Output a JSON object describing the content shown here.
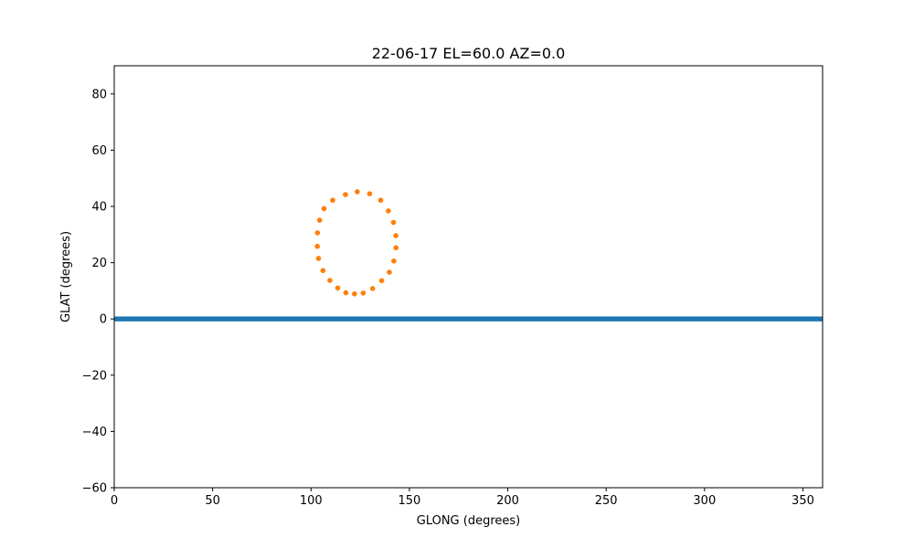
{
  "chart_data": {
    "type": "scatter",
    "title": "22-06-17 EL=60.0 AZ=0.0",
    "xlabel": "GLONG (degrees)",
    "ylabel": "GLAT (degrees)",
    "xlim": [
      0,
      360
    ],
    "ylim": [
      -60,
      90
    ],
    "xticks": [
      0,
      50,
      100,
      150,
      200,
      250,
      300,
      350
    ],
    "yticks": [
      -60,
      -40,
      -20,
      0,
      20,
      40,
      60,
      80
    ],
    "xtick_labels": [
      "0",
      "50",
      "100",
      "150",
      "200",
      "250",
      "300",
      "350"
    ],
    "ytick_labels": [
      "−60",
      "−40",
      "−20",
      "0",
      "20",
      "40",
      "60",
      "80"
    ],
    "grid": false,
    "legend": "none",
    "series": [
      {
        "color": "#1f77b4",
        "description_values": "galactic plane, points every 1 degree from 0 to 360 at latitude 0",
        "x_start": 0,
        "x_end": 360,
        "x_step": 1,
        "y": 0
      },
      {
        "color": "#ff7f0e",
        "x": [
          123.5,
          129.8,
          135.4,
          139.3,
          141.9,
          143.1,
          143.2,
          142.1,
          139.8,
          135.9,
          131.3,
          126.5,
          122.1,
          117.7,
          113.6,
          109.6,
          106.1,
          103.8,
          103.2,
          103.3,
          104.4,
          106.6,
          111.0,
          117.5
        ],
        "y": [
          45.2,
          44.5,
          42.2,
          38.4,
          34.3,
          29.6,
          25.3,
          20.6,
          16.6,
          13.6,
          10.8,
          9.2,
          8.9,
          9.3,
          11.0,
          13.7,
          17.2,
          21.5,
          25.8,
          30.6,
          35.1,
          39.2,
          42.2,
          44.2
        ]
      }
    ]
  }
}
